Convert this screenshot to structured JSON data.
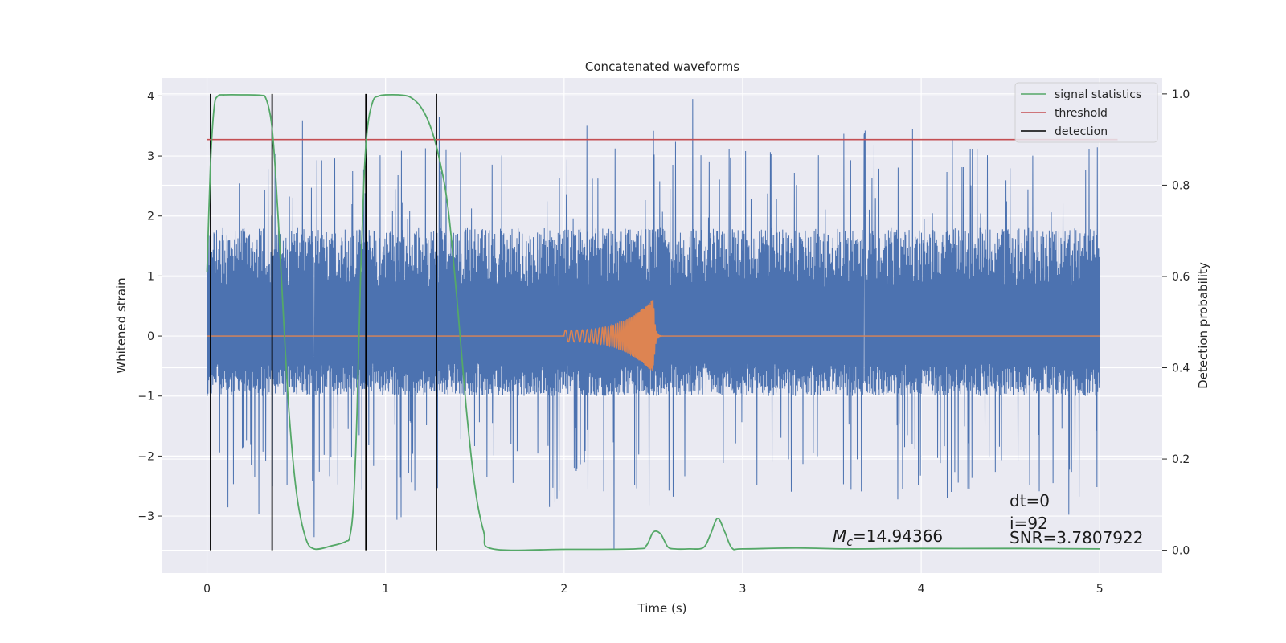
{
  "chart_data": {
    "type": "line",
    "title": "Concatenated waveforms",
    "xlabel": "Time (s)",
    "ylabel": "Whitened strain",
    "y2label": "Detection probability",
    "xlim": [
      -0.25,
      5.35
    ],
    "ylim": [
      -3.95,
      4.3
    ],
    "y2lim": [
      -0.05,
      1.035
    ],
    "xticks": [
      0,
      1,
      2,
      3,
      4,
      5
    ],
    "xtick_labels": [
      "0",
      "1",
      "2",
      "3",
      "4",
      "5"
    ],
    "yticks": [
      -3,
      -2,
      -1,
      0,
      1,
      2,
      3,
      4
    ],
    "ytick_labels": [
      "−3",
      "−2",
      "−1",
      "0",
      "1",
      "2",
      "3",
      "4"
    ],
    "y2ticks": [
      0.0,
      0.2,
      0.4,
      0.6,
      0.8,
      1.0
    ],
    "y2tick_labels": [
      "0.0",
      "0.2",
      "0.4",
      "0.6",
      "0.8",
      "1.0"
    ],
    "grid": true,
    "legend_position": "top-right",
    "colors": {
      "noise": "#4c72b0",
      "waveform": "#dd8452",
      "signal_statistics": "#55a868",
      "threshold": "#c44e52",
      "detection": "#000000",
      "plot_bg": "#eaeaf2",
      "grid": "#ffffff"
    },
    "series": [
      {
        "name": "signal statistics",
        "axis": "right",
        "x": [
          0.0,
          0.02,
          0.04,
          0.06,
          0.1,
          0.2,
          0.3,
          0.33,
          0.36,
          0.38,
          0.4,
          0.43,
          0.46,
          0.5,
          0.55,
          0.6,
          0.7,
          0.75,
          0.78,
          0.8,
          0.82,
          0.84,
          0.86,
          0.88,
          0.9,
          0.93,
          0.96,
          1.0,
          1.1,
          1.15,
          1.2,
          1.25,
          1.3,
          1.35,
          1.4,
          1.45,
          1.5,
          1.55,
          1.6,
          2.0,
          2.4,
          2.46,
          2.5,
          2.54,
          2.58,
          2.62,
          2.7,
          2.78,
          2.82,
          2.86,
          2.9,
          2.94,
          3.0,
          3.3,
          3.6,
          3.9,
          4.2,
          4.6,
          5.0
        ],
        "y": [
          0.61,
          0.85,
          0.97,
          0.995,
          0.998,
          0.998,
          0.997,
          0.99,
          0.94,
          0.85,
          0.72,
          0.5,
          0.3,
          0.13,
          0.03,
          0.003,
          0.01,
          0.015,
          0.02,
          0.03,
          0.1,
          0.3,
          0.6,
          0.82,
          0.93,
          0.985,
          0.995,
          0.998,
          0.997,
          0.99,
          0.97,
          0.93,
          0.86,
          0.75,
          0.55,
          0.32,
          0.14,
          0.04,
          0.003,
          0.002,
          0.003,
          0.01,
          0.04,
          0.036,
          0.008,
          0.003,
          0.003,
          0.006,
          0.035,
          0.07,
          0.04,
          0.005,
          0.003,
          0.005,
          0.003,
          0.004,
          0.004,
          0.004,
          0.003
        ]
      },
      {
        "name": "threshold",
        "axis": "right",
        "x": [
          0.0,
          5.1
        ],
        "y": [
          0.9,
          0.9
        ]
      },
      {
        "name": "detection",
        "axis": "right",
        "x_positions": [
          0.02,
          0.365,
          0.89,
          1.285
        ],
        "y_range": [
          0.0,
          1.0
        ]
      }
    ],
    "noise": {
      "x_range": [
        0.0,
        5.0
      ],
      "band": [
        -1.0,
        1.8
      ],
      "max_peak": 3.95,
      "min_peak": -3.55,
      "peaks": [
        {
          "x": 2.5,
          "y": 3.42
        },
        {
          "x": 2.72,
          "y": 3.95
        },
        {
          "x": 1.3,
          "y": 3.65
        },
        {
          "x": 3.68,
          "y": 3.35
        },
        {
          "x": 2.28,
          "y": -3.55
        },
        {
          "x": 0.6,
          "y": -3.35
        }
      ]
    },
    "waveform": {
      "x_range": [
        0.0,
        5.0
      ],
      "chirp_start": 2.0,
      "merger": 2.5,
      "amplitude_start": 0.1,
      "amplitude_max": 0.62,
      "amplitude_min": -0.75
    },
    "annotations": {
      "mc_symbol": "M",
      "mc_sub": "c",
      "mc_value": "=14.94366",
      "dt": "dt=0",
      "i": "i=92",
      "snr": "SNR=3.7807922"
    }
  }
}
